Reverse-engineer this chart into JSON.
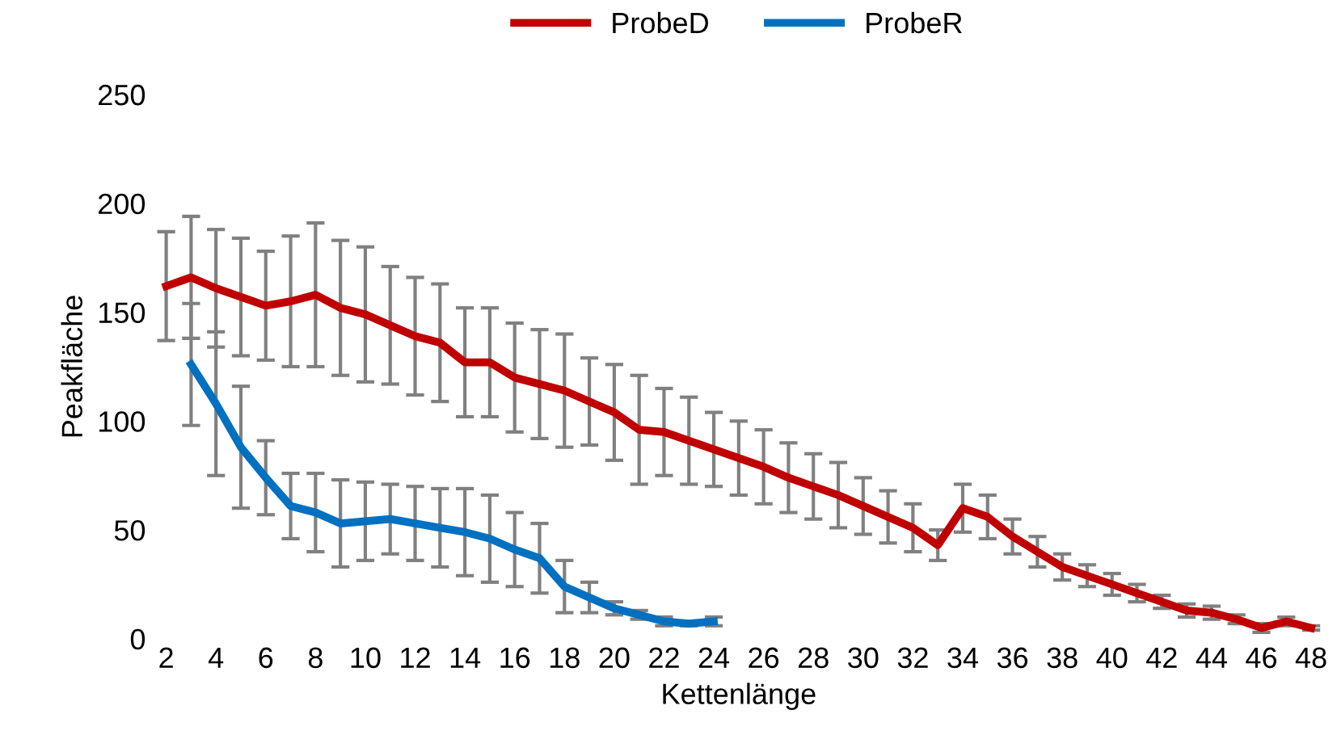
{
  "chart_data": {
    "type": "line",
    "xlabel": "Kettenlänge",
    "ylabel": "Peakfläche",
    "ylim": [
      0,
      250
    ],
    "yticks": [
      0,
      50,
      100,
      150,
      200,
      250
    ],
    "grid": false,
    "legend": "top",
    "marker": "none",
    "line_style": "solid",
    "categories": [
      "2",
      null,
      "4",
      null,
      "6",
      null,
      "8",
      null,
      "10",
      null,
      "12",
      null,
      "14",
      null,
      "16",
      null,
      "18",
      null,
      "20",
      null,
      "22",
      null,
      "24",
      null,
      "26",
      null,
      "28",
      null,
      "30",
      null,
      "32",
      null,
      "34",
      null,
      "36",
      null,
      "38",
      null,
      "40",
      null,
      "42",
      null,
      "44",
      null,
      "46",
      null,
      "48"
    ],
    "series": [
      {
        "name": "ProbeD",
        "color": "#c00000",
        "values": [
          162,
          166,
          161,
          157,
          153,
          155,
          158,
          152,
          149,
          144,
          139,
          136,
          127,
          127,
          120,
          117,
          114,
          109,
          104,
          96,
          95,
          91,
          87,
          83,
          79,
          74,
          70,
          66,
          61,
          56,
          51,
          43,
          60,
          56,
          47,
          40,
          33,
          29,
          25,
          21,
          17,
          13,
          12,
          9,
          5,
          8,
          5
        ],
        "errors": [
          25,
          28,
          27,
          27,
          25,
          30,
          33,
          31,
          31,
          27,
          27,
          27,
          25,
          25,
          25,
          25,
          26,
          20,
          22,
          25,
          20,
          20,
          17,
          17,
          17,
          16,
          15,
          15,
          13,
          12,
          11,
          7,
          11,
          10,
          8,
          7,
          6,
          5,
          5,
          4,
          3,
          3,
          3,
          2,
          2,
          2,
          1
        ]
      },
      {
        "name": "ProbeR",
        "color": "#0070c0",
        "values": [
          null,
          126,
          108,
          88,
          74,
          61,
          58,
          53,
          54,
          55,
          53,
          51,
          49,
          46,
          41,
          37,
          24,
          19,
          14,
          11,
          8,
          7,
          8,
          null,
          null,
          null,
          null,
          null,
          null,
          null,
          null,
          null,
          null,
          null,
          null,
          null,
          null,
          null,
          null,
          null,
          null,
          null,
          null,
          null,
          null,
          null,
          null
        ],
        "errors": [
          null,
          28,
          33,
          28,
          17,
          15,
          18,
          20,
          18,
          16,
          17,
          18,
          20,
          20,
          17,
          16,
          12,
          7,
          3,
          2,
          2,
          1,
          2,
          null,
          null,
          null,
          null,
          null,
          null,
          null,
          null,
          null,
          null,
          null,
          null,
          null,
          null,
          null,
          null,
          null,
          null,
          null,
          null,
          null,
          null,
          null,
          null
        ]
      }
    ]
  }
}
